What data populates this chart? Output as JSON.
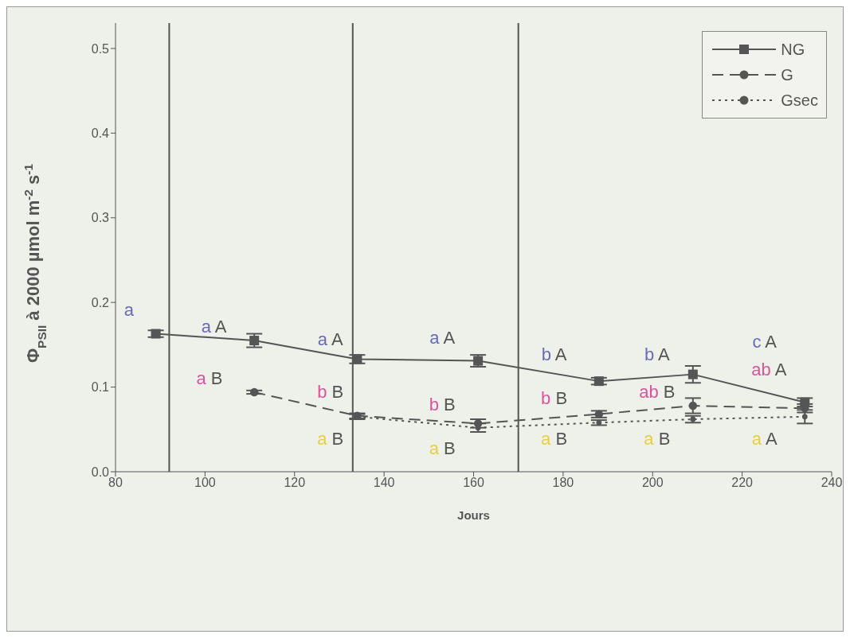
{
  "chart_data": {
    "type": "line",
    "xlabel": "Jours",
    "ylabel": "Φ$_{PSII}$ à 2000  µmol m$^{-2}$ s$^{-1}$",
    "xlim": [
      80,
      240
    ],
    "xticks": [
      80,
      100,
      120,
      140,
      160,
      180,
      200,
      220,
      240
    ],
    "ylim": [
      0,
      0.53
    ],
    "yticks": [
      {
        "value": 0,
        "label": "0.0"
      },
      0.1,
      0.2,
      0.3,
      0.4,
      0.5
    ],
    "grid": false,
    "legend": "top right",
    "series": [
      {
        "name": "NG",
        "color": "#555555",
        "marker": "square",
        "line_style": "solid",
        "x": [
          89,
          111,
          134,
          161,
          188,
          209,
          234
        ],
        "values": [
          0.163,
          0.155,
          0.133,
          0.131,
          0.107,
          0.115,
          0.082
        ],
        "errors": [
          0.004,
          0.008,
          0.005,
          0.007,
          0.004,
          0.01,
          0.005
        ]
      },
      {
        "name": "G",
        "color": "#555555",
        "marker": "circle",
        "line_style": "dashed",
        "x": [
          111,
          134,
          161,
          188,
          209,
          234
        ],
        "values": [
          0.094,
          0.066,
          0.057,
          0.068,
          0.078,
          0.075
        ],
        "errors": [
          0.002,
          0.003,
          0.005,
          0.004,
          0.009,
          0.005
        ]
      },
      {
        "name": "Gsec",
        "color": "#555555",
        "marker": "circle",
        "line_style": "dotted",
        "x": [
          134,
          161,
          188,
          209,
          234
        ],
        "values": [
          0.065,
          0.052,
          0.058,
          0.062,
          0.065
        ],
        "errors": [
          0.003,
          0.005,
          0.003,
          0.004,
          0.008
        ]
      }
    ],
    "ref_lines": [
      {
        "axis": "x",
        "value": 92,
        "color": "#555555"
      },
      {
        "axis": "x",
        "value": 133,
        "color": "#555555"
      },
      {
        "axis": "x",
        "value": 170,
        "color": "#555555"
      }
    ],
    "annotations": [
      "a",
      "a A",
      "a B",
      "a A",
      "b B",
      "a B",
      "a A",
      "b B",
      "a B",
      "b A",
      "b B",
      "a B",
      "b A",
      "ab B",
      "a B",
      "c A",
      "ab A",
      "a A"
    ]
  }
}
